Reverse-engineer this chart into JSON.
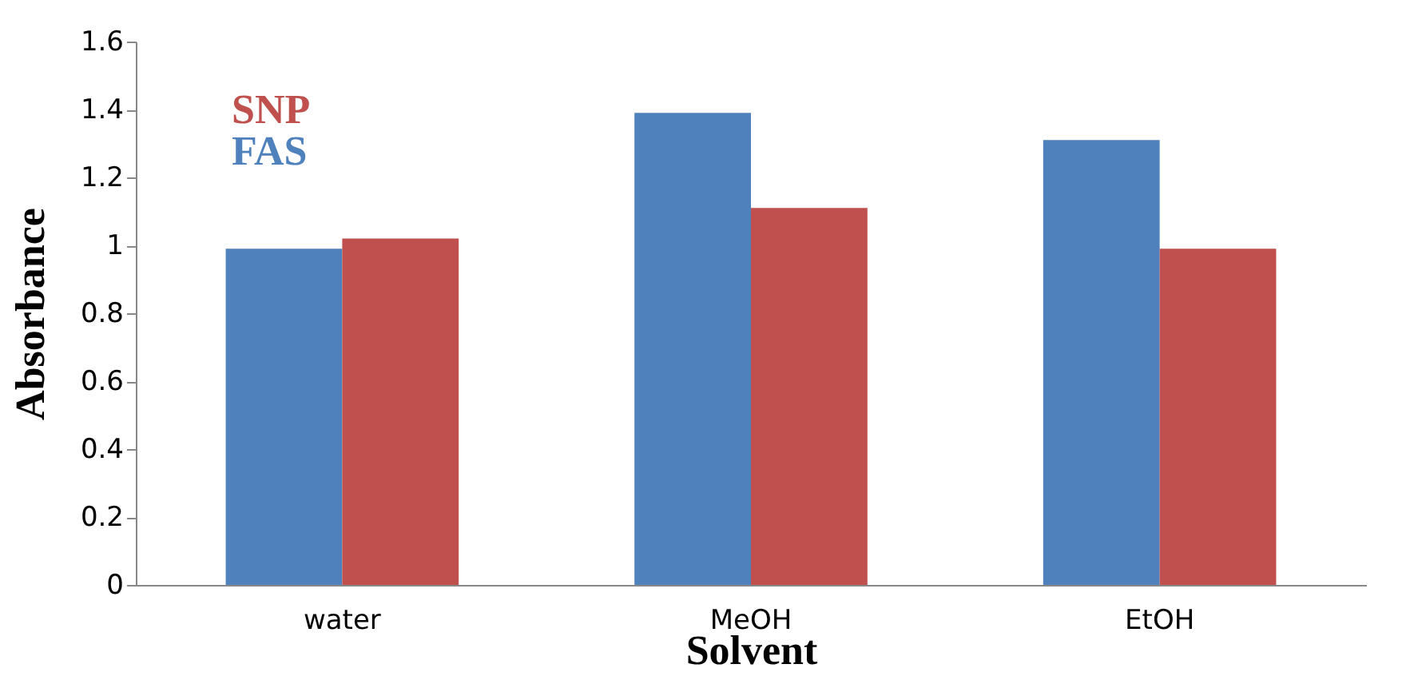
{
  "chart_data": {
    "type": "bar",
    "xlabel": "Solvent",
    "ylabel": "Absorbance",
    "categories": [
      "water",
      "MeOH",
      "EtOH"
    ],
    "series": [
      {
        "name": "FAS",
        "color": "#4f81bd",
        "values": [
          0.99,
          1.39,
          1.31
        ]
      },
      {
        "name": "SNP",
        "color": "#c0504d",
        "values": [
          1.02,
          1.11,
          0.99
        ]
      }
    ],
    "ylim": [
      0,
      1.6
    ],
    "yticks": [
      0,
      0.2,
      0.4,
      0.6,
      0.8,
      1,
      1.2,
      1.4,
      1.6
    ],
    "grid": false,
    "legend": "top left"
  }
}
